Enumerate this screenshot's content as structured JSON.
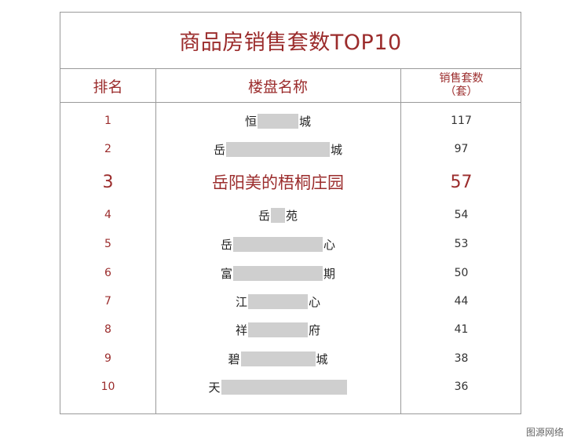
{
  "title": "商品房销售套数TOP10",
  "headers": {
    "rank": "排名",
    "name": "楼盘名称",
    "count_line1": "销售套数",
    "count_line2": "（套）"
  },
  "rows": [
    {
      "rank": "1",
      "name_start": "恒",
      "name_end": "城",
      "count": "117"
    },
    {
      "rank": "2",
      "name_start": "岳",
      "name_end": "城",
      "count": "97"
    },
    {
      "rank": "3",
      "name_full": "岳阳美的梧桐庄园",
      "count": "57"
    },
    {
      "rank": "4",
      "name_start": "岳",
      "name_end": "苑",
      "count": "54"
    },
    {
      "rank": "5",
      "name_start": "岳",
      "name_end": "心",
      "count": "53"
    },
    {
      "rank": "6",
      "name_start": "富",
      "name_end": "期",
      "count": "50"
    },
    {
      "rank": "7",
      "name_start": "江",
      "name_end": "心",
      "count": "44"
    },
    {
      "rank": "8",
      "name_start": "祥",
      "name_end": "府",
      "count": "41"
    },
    {
      "rank": "9",
      "name_start": "碧",
      "name_end": "城",
      "count": "38"
    },
    {
      "rank": "10",
      "name_start": "天",
      "name_end": "",
      "count": "36"
    }
  ],
  "source": "图源网络"
}
